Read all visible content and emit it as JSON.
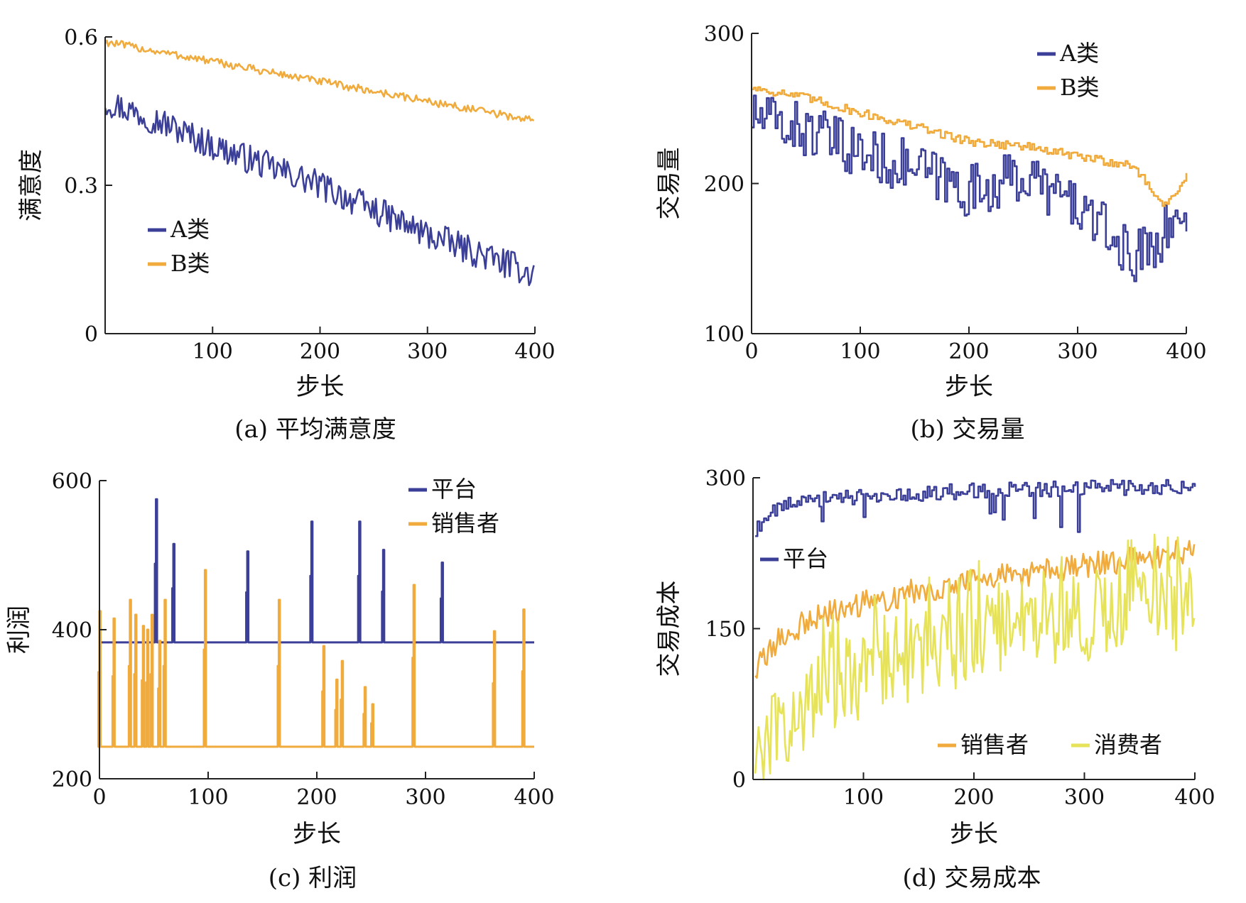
{
  "colors": {
    "series_blue": "#3b3f98",
    "series_orange": "#f0ab3c",
    "series_yellow": "#e6e35a",
    "axis": "#222222"
  },
  "chart_data": [
    {
      "id": "a",
      "type": "line",
      "caption": "(a) 平均满意度",
      "xlabel": "步长",
      "ylabel": "满意度",
      "xlim": [
        0,
        400
      ],
      "ylim": [
        0,
        0.6
      ],
      "xticks": [
        "100",
        "200",
        "300",
        "400"
      ],
      "yticks": [
        "0",
        "0.3",
        "0.6"
      ],
      "legend_position": "middle-left",
      "series": [
        {
          "name": "A类",
          "color": "#3b3f98",
          "mode": "line",
          "noise": 0.03,
          "x": [
            0,
            50,
            100,
            150,
            200,
            250,
            300,
            350,
            400
          ],
          "values": [
            0.47,
            0.43,
            0.38,
            0.34,
            0.3,
            0.25,
            0.2,
            0.16,
            0.12
          ]
        },
        {
          "name": "B类",
          "color": "#f0ab3c",
          "mode": "line",
          "noise": 0.008,
          "x": [
            0,
            100,
            200,
            300,
            400
          ],
          "values": [
            0.59,
            0.55,
            0.51,
            0.47,
            0.43
          ]
        }
      ]
    },
    {
      "id": "b",
      "type": "line",
      "caption": "(b) 交易量",
      "xlabel": "步长",
      "ylabel": "交易量",
      "xlim": [
        0,
        400
      ],
      "ylim": [
        100,
        300
      ],
      "xticks": [
        "0",
        "100",
        "200",
        "300",
        "400"
      ],
      "yticks": [
        "100",
        "200",
        "300"
      ],
      "legend_position": "top-right",
      "series": [
        {
          "name": "A类",
          "color": "#3b3f98",
          "mode": "step",
          "noise": 18,
          "x": [
            0,
            50,
            100,
            150,
            200,
            250,
            300,
            350,
            400
          ],
          "values": [
            245,
            235,
            220,
            210,
            195,
            205,
            185,
            150,
            180
          ]
        },
        {
          "name": "B类",
          "color": "#f0ab3c",
          "mode": "step",
          "noise": 3,
          "x": [
            0,
            50,
            100,
            150,
            200,
            250,
            300,
            350,
            380,
            400
          ],
          "values": [
            264,
            257,
            247,
            238,
            228,
            225,
            218,
            212,
            185,
            205
          ]
        }
      ]
    },
    {
      "id": "c",
      "type": "line",
      "caption": "(c) 利润",
      "xlabel": "步长",
      "ylabel": "利润",
      "xlim": [
        0,
        400
      ],
      "ylim": [
        200,
        600
      ],
      "xticks": [
        "0",
        "100",
        "200",
        "300",
        "400"
      ],
      "yticks": [
        "200",
        "400",
        "600"
      ],
      "legend_position": "top-right",
      "series": [
        {
          "name": "平台",
          "color": "#3b3f98",
          "mode": "baseline_spikes",
          "baseline": 383,
          "spikes": [
            [
              52,
              575
            ],
            [
              68,
              515
            ],
            [
              136,
              505
            ],
            [
              195,
              545
            ],
            [
              239,
              545
            ],
            [
              261,
              507
            ],
            [
              315,
              490
            ]
          ]
        },
        {
          "name": "销售者",
          "color": "#f0ab3c",
          "mode": "baseline_spikes",
          "baseline": 243,
          "spikes": [
            [
              0,
              425
            ],
            [
              13,
              415
            ],
            [
              28,
              440
            ],
            [
              33,
              420
            ],
            [
              40,
              405
            ],
            [
              44,
              400
            ],
            [
              48,
              420
            ],
            [
              55,
              385
            ],
            [
              60,
              440
            ],
            [
              97,
              480
            ],
            [
              165,
              440
            ],
            [
              206,
              378
            ],
            [
              218,
              333
            ],
            [
              223,
              358
            ],
            [
              244,
              323
            ],
            [
              251,
              300
            ],
            [
              289,
              460
            ],
            [
              363,
              398
            ],
            [
              390,
              427
            ]
          ]
        }
      ]
    },
    {
      "id": "d",
      "type": "line",
      "caption": "(d) 交易成本",
      "xlabel": "步长",
      "ylabel": "交易成本",
      "xlim": [
        0,
        400
      ],
      "ylim": [
        0,
        300
      ],
      "xticks": [
        "100",
        "200",
        "300",
        "400"
      ],
      "yticks": [
        "0",
        "150",
        "300"
      ],
      "legend_position": "middle-left / bottom-right",
      "series": [
        {
          "name": "平台",
          "color": "#3b3f98",
          "mode": "step",
          "noise": 8,
          "x": [
            0,
            10,
            30,
            60,
            100,
            200,
            300,
            400
          ],
          "values": [
            240,
            265,
            272,
            278,
            282,
            287,
            290,
            292
          ]
        },
        {
          "name": "销售者",
          "color": "#f0ab3c",
          "mode": "line",
          "noise": 13,
          "x": [
            0,
            20,
            50,
            100,
            150,
            200,
            250,
            300,
            350,
            400
          ],
          "values": [
            105,
            135,
            158,
            175,
            188,
            198,
            205,
            212,
            220,
            228
          ]
        },
        {
          "name": "消费者",
          "color": "#e6e35a",
          "mode": "line",
          "noise": 45,
          "x": [
            0,
            20,
            50,
            100,
            150,
            200,
            250,
            300,
            350,
            400
          ],
          "values": [
            20,
            45,
            78,
            105,
            125,
            140,
            150,
            160,
            165,
            172
          ]
        }
      ]
    }
  ]
}
